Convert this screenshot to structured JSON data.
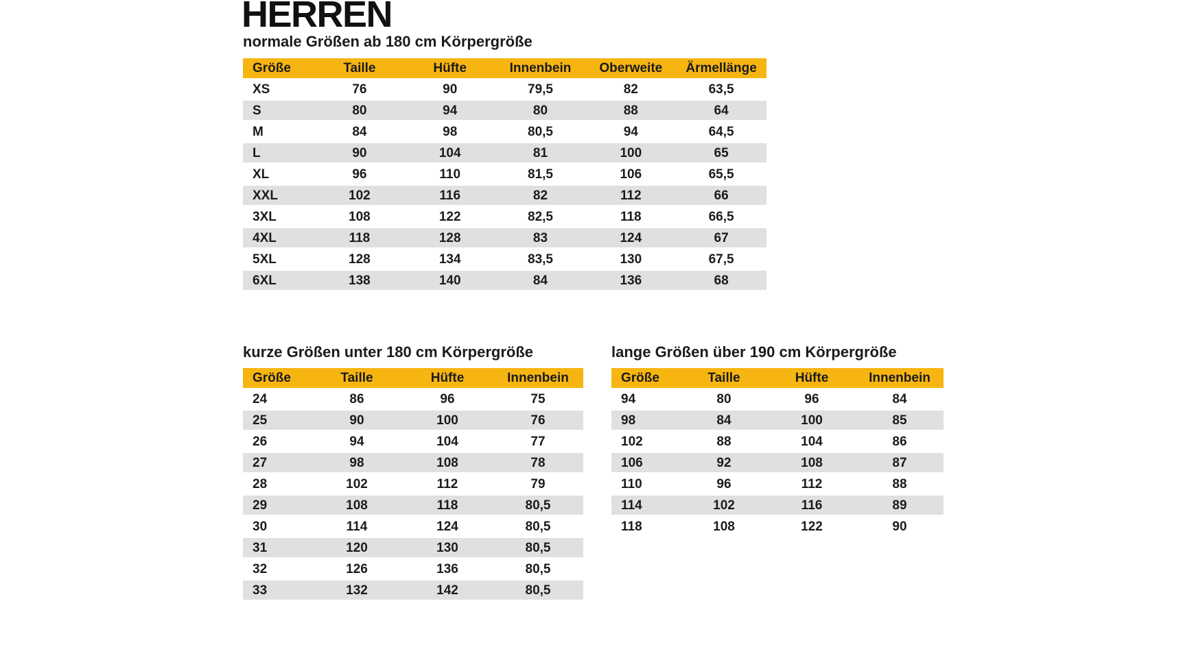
{
  "page": {
    "heading": "HERREN"
  },
  "colors": {
    "header_bg": "#F7B512",
    "row_alt_bg": "#E0E0E0",
    "text": "#1B1B1B"
  },
  "tables": {
    "normal": {
      "title": "normale Größen ab 180 cm Körpergröße",
      "columns": [
        "Größe",
        "Taille",
        "Hüfte",
        "Innenbein",
        "Oberweite",
        "Ärmellänge"
      ],
      "rows": [
        [
          "XS",
          "76",
          "90",
          "79,5",
          "82",
          "63,5"
        ],
        [
          "S",
          "80",
          "94",
          "80",
          "88",
          "64"
        ],
        [
          "M",
          "84",
          "98",
          "80,5",
          "94",
          "64,5"
        ],
        [
          "L",
          "90",
          "104",
          "81",
          "100",
          "65"
        ],
        [
          "XL",
          "96",
          "110",
          "81,5",
          "106",
          "65,5"
        ],
        [
          "XXL",
          "102",
          "116",
          "82",
          "112",
          "66"
        ],
        [
          "3XL",
          "108",
          "122",
          "82,5",
          "118",
          "66,5"
        ],
        [
          "4XL",
          "118",
          "128",
          "83",
          "124",
          "67"
        ],
        [
          "5XL",
          "128",
          "134",
          "83,5",
          "130",
          "67,5"
        ],
        [
          "6XL",
          "138",
          "140",
          "84",
          "136",
          "68"
        ]
      ]
    },
    "short": {
      "title": "kurze Größen unter 180 cm Körpergröße",
      "columns": [
        "Größe",
        "Taille",
        "Hüfte",
        "Innenbein"
      ],
      "rows": [
        [
          "24",
          "86",
          "96",
          "75"
        ],
        [
          "25",
          "90",
          "100",
          "76"
        ],
        [
          "26",
          "94",
          "104",
          "77"
        ],
        [
          "27",
          "98",
          "108",
          "78"
        ],
        [
          "28",
          "102",
          "112",
          "79"
        ],
        [
          "29",
          "108",
          "118",
          "80,5"
        ],
        [
          "30",
          "114",
          "124",
          "80,5"
        ],
        [
          "31",
          "120",
          "130",
          "80,5"
        ],
        [
          "32",
          "126",
          "136",
          "80,5"
        ],
        [
          "33",
          "132",
          "142",
          "80,5"
        ]
      ]
    },
    "long": {
      "title": "lange Größen über 190 cm Körpergröße",
      "columns": [
        "Größe",
        "Taille",
        "Hüfte",
        "Innenbein"
      ],
      "rows": [
        [
          "94",
          "80",
          "96",
          "84"
        ],
        [
          "98",
          "84",
          "100",
          "85"
        ],
        [
          "102",
          "88",
          "104",
          "86"
        ],
        [
          "106",
          "92",
          "108",
          "87"
        ],
        [
          "110",
          "96",
          "112",
          "88"
        ],
        [
          "114",
          "102",
          "116",
          "89"
        ],
        [
          "118",
          "108",
          "122",
          "90"
        ]
      ]
    }
  }
}
